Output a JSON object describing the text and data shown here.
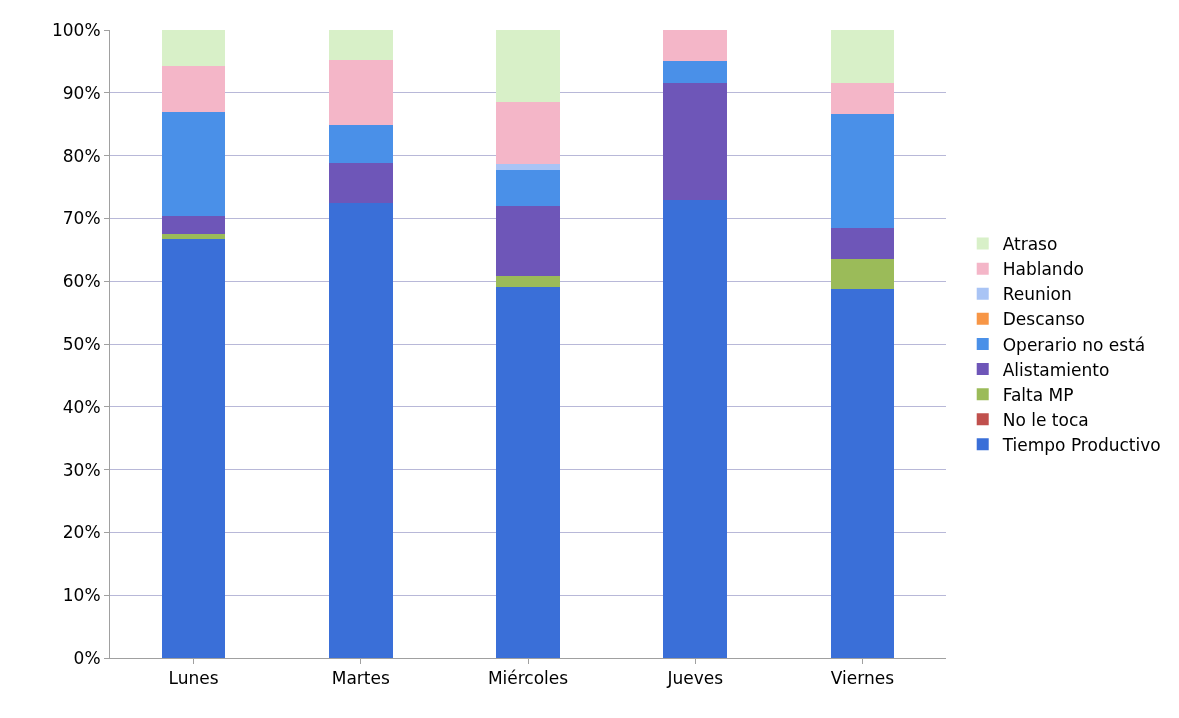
{
  "chart_data": {
    "type": "bar",
    "stacked": true,
    "categories": [
      "Lunes",
      "Martes",
      "Miércoles",
      "Jueves",
      "Viernes"
    ],
    "series": [
      {
        "name": "Tiempo Productivo",
        "color": "#3a6fd8",
        "values": [
          66.7,
          72.4,
          59.1,
          73.0,
          58.8
        ]
      },
      {
        "name": "No le toca",
        "color": "#c0504d",
        "values": [
          0,
          0,
          0,
          0,
          0
        ]
      },
      {
        "name": "Falta MP",
        "color": "#9bbb59",
        "values": [
          0.8,
          0,
          1.7,
          0,
          4.7
        ]
      },
      {
        "name": "Alistamiento",
        "color": "#6e56b8",
        "values": [
          2.9,
          6.5,
          11.2,
          18.5,
          5.0
        ]
      },
      {
        "name": "Operario no está",
        "color": "#4a90e8",
        "values": [
          16.5,
          6.0,
          5.7,
          3.6,
          18.1
        ]
      },
      {
        "name": "Descanso",
        "color": "#f79646",
        "values": [
          0,
          0,
          0,
          0,
          0
        ]
      },
      {
        "name": "Reunion",
        "color": "#a9c4f5",
        "values": [
          0,
          0,
          0.9,
          0,
          0
        ]
      },
      {
        "name": "Hablando",
        "color": "#f4b6c8",
        "values": [
          7.4,
          10.4,
          10.0,
          4.9,
          5.0
        ]
      },
      {
        "name": "Atraso",
        "color": "#d8f0c8",
        "values": [
          5.7,
          4.7,
          11.4,
          0,
          8.4
        ]
      }
    ],
    "ylim": [
      0,
      100
    ],
    "yticks": [
      {
        "value": 0,
        "label": "0%"
      },
      {
        "value": 10,
        "label": "10%"
      },
      {
        "value": 20,
        "label": "20%"
      },
      {
        "value": 30,
        "label": "30%"
      },
      {
        "value": 40,
        "label": "40%"
      },
      {
        "value": 50,
        "label": "50%"
      },
      {
        "value": 60,
        "label": "60%"
      },
      {
        "value": 70,
        "label": "70%"
      },
      {
        "value": 80,
        "label": "80%"
      },
      {
        "value": 90,
        "label": "90%"
      },
      {
        "value": 100,
        "label": "100%"
      }
    ],
    "grid": "y",
    "legend": "right"
  }
}
